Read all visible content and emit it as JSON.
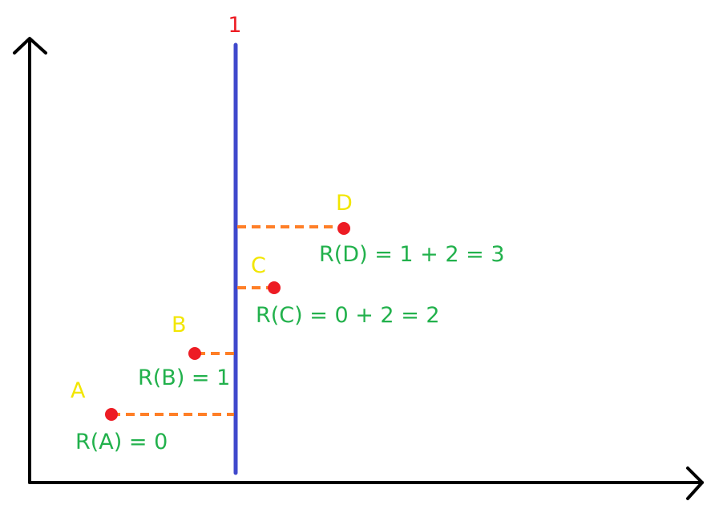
{
  "colors": {
    "axes": "#000000",
    "vertical_line": "#3f48cc",
    "dashed_connector": "#ff7f27",
    "point": "#ed1c24",
    "point_label": "#f2e600",
    "formula_label": "#22b14c",
    "line_label": "#ed1c24"
  },
  "vertical_line": {
    "label": "1"
  },
  "points": [
    {
      "id": "a",
      "name": "A",
      "formula": "R(A) = 0"
    },
    {
      "id": "b",
      "name": "B",
      "formula": "R(B) = 1"
    },
    {
      "id": "c",
      "name": "C",
      "formula": "R(C) = 0 + 2 = 2"
    },
    {
      "id": "d",
      "name": "D",
      "formula": "R(D) = 1 + 2 = 3"
    }
  ]
}
